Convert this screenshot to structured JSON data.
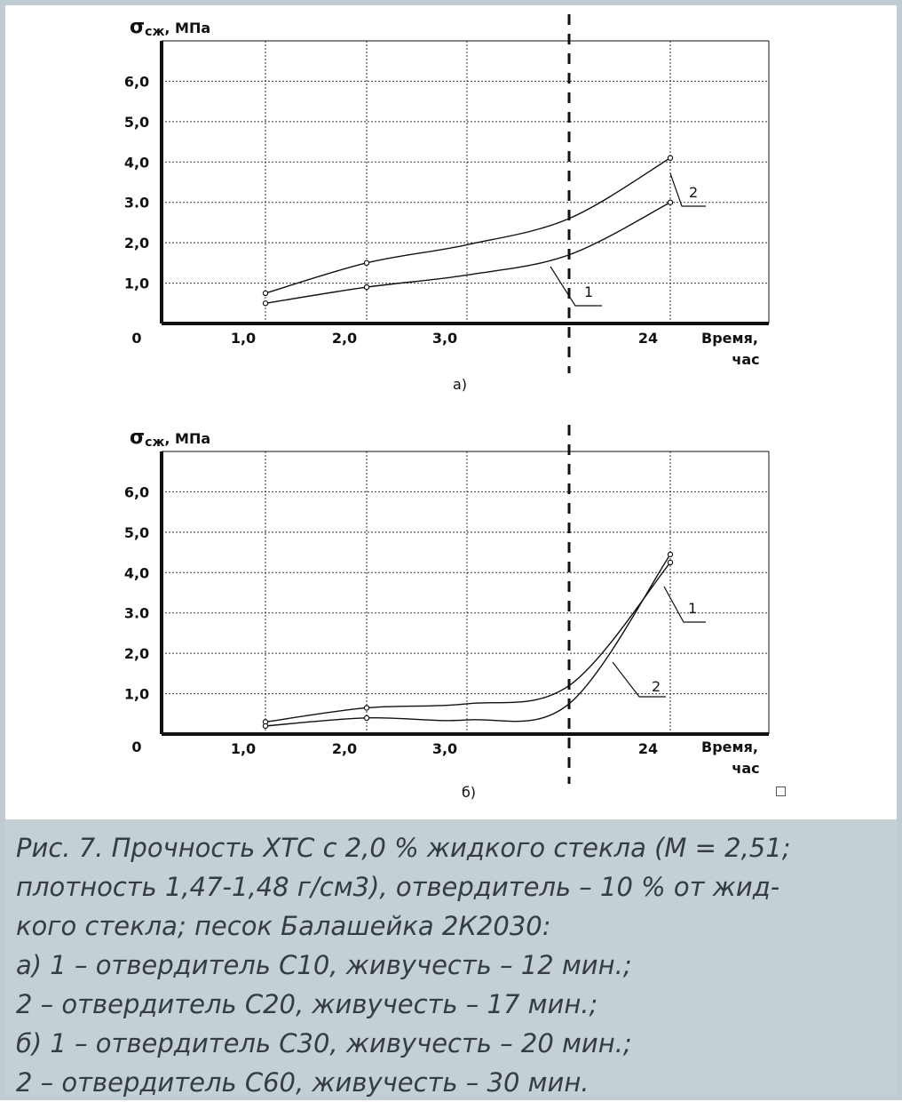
{
  "colors": {
    "frame": "#bfcdd3",
    "caption_bg": "#c5d0d5",
    "caption_text": "#333d42",
    "ink": "#111111"
  },
  "chart_data": [
    {
      "type": "line",
      "label": "а)",
      "ylabel_main": "σ",
      "ylabel_sub": "сж",
      "ylabel_unit": ", МПа",
      "xlabel_line1": "Время,",
      "xlabel_line2": "час",
      "origin_label": "0",
      "ylim": [
        0,
        7.0
      ],
      "yticks": [
        1.0,
        2.0,
        3.0,
        4.0,
        5.0,
        6.0
      ],
      "ytick_labels": [
        "1,0",
        "2,0",
        "3.0",
        "4,0",
        "5,0",
        "6,0"
      ],
      "x_positions": [
        "1,0",
        "2,0",
        "3,0",
        "break",
        "24"
      ],
      "xtick_labels": [
        "1,0",
        "2,0",
        "3,0",
        "24"
      ],
      "grid": true,
      "series": [
        {
          "name": "1",
          "x": [
            "1,0",
            "2,0",
            "3,0",
            "break",
            "24"
          ],
          "values": [
            0.5,
            0.9,
            1.2,
            1.7,
            3.0
          ],
          "markers": [
            true,
            true,
            false,
            false,
            true
          ]
        },
        {
          "name": "2",
          "x": [
            "1,0",
            "2,0",
            "3,0",
            "break",
            "24"
          ],
          "values": [
            0.75,
            1.5,
            1.95,
            2.6,
            4.1
          ],
          "markers": [
            true,
            true,
            false,
            false,
            true
          ]
        }
      ]
    },
    {
      "type": "line",
      "label": "б)",
      "ylabel_main": "σ",
      "ylabel_sub": "сж",
      "ylabel_unit": ", МПа",
      "xlabel_line1": "Время,",
      "xlabel_line2": "час",
      "origin_label": "0",
      "ylim": [
        0,
        7.0
      ],
      "yticks": [
        1.0,
        2.0,
        3.0,
        4.0,
        5.0,
        6.0
      ],
      "ytick_labels": [
        "1,0",
        "2,0",
        "3.0",
        "4,0",
        "5,0",
        "6,0"
      ],
      "x_positions": [
        "1,0",
        "2,0",
        "3,0",
        "break",
        "24"
      ],
      "xtick_labels": [
        "1,0",
        "2,0",
        "3,0",
        "24"
      ],
      "grid": true,
      "series": [
        {
          "name": "1",
          "x": [
            "1,0",
            "2,0",
            "3,0",
            "break",
            "24"
          ],
          "values": [
            0.3,
            0.65,
            0.75,
            1.2,
            4.25
          ],
          "markers": [
            true,
            true,
            false,
            false,
            true
          ]
        },
        {
          "name": "2",
          "x": [
            "1,0",
            "2,0",
            "3,0",
            "break",
            "24"
          ],
          "values": [
            0.2,
            0.4,
            0.35,
            0.75,
            4.45
          ],
          "markers": [
            true,
            true,
            false,
            false,
            true
          ]
        }
      ]
    }
  ],
  "caption": {
    "lines": [
      "Рис. 7. Прочность ХТС с 2,0 % жидкого стекла (М = 2,51;",
      "плотность 1,47-1,48 г/см3), отвердитель – 10 % от жид-",
      "кого стекла; песок Балашейка 2К2030:",
      "а) 1 – отвердитель С10, живучесть – 12 мин.;",
      "2 – отвердитель С20, живучесть – 17 мин.;",
      "б) 1 – отвердитель С30, живучесть – 20 мин.;",
      "2 – отвердитель С60, живучесть – 30 мин."
    ]
  }
}
